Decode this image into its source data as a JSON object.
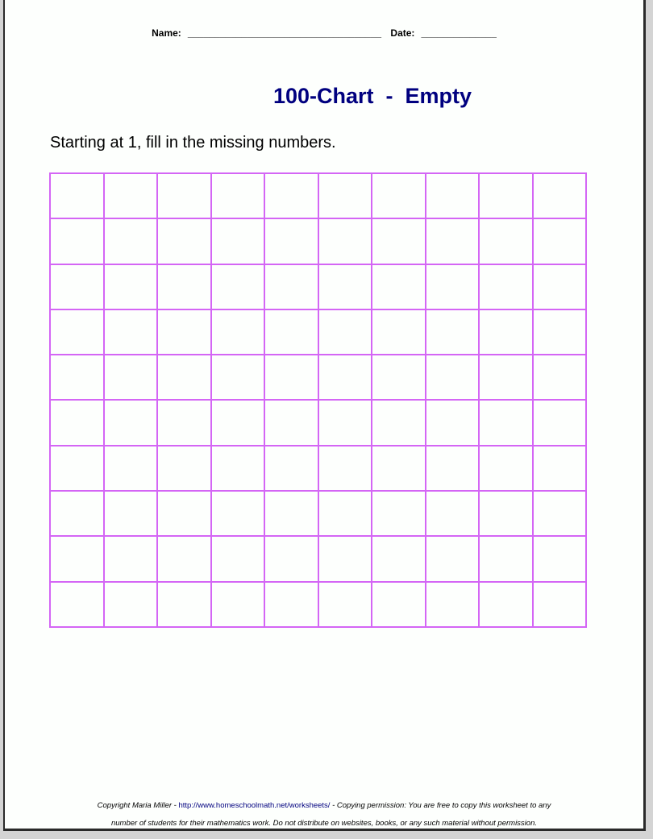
{
  "header": {
    "name_label": "Name:",
    "name_blank": "____________________________________",
    "date_label": "Date:",
    "date_blank": "______________"
  },
  "title": "100-Chart  -  Empty",
  "instructions": "Starting at 1, fill in the missing numbers.",
  "grid": {
    "rows": 10,
    "columns": 10,
    "line_color": "#d466f5"
  },
  "footer": {
    "copyright": "Copyright Maria Miller - ",
    "link": "http://www.homeschoolmath.net/worksheets/",
    "permission_1": " - Copying permission: You are free to copy this worksheet to any",
    "permission_2": "number of students for their mathematics work. Do not distribute on websites, books, or any such material without permission."
  }
}
